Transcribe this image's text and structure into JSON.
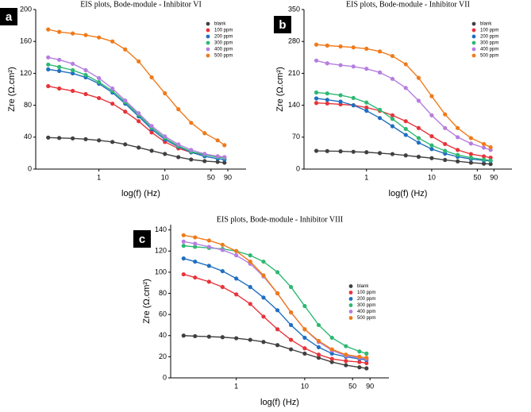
{
  "chart_data": [
    {
      "type": "line",
      "panel_label": "a",
      "title": "EIS plots, Bode-module - Inhibitor VI",
      "xlabel": "log(f) (Hz)",
      "ylabel": "Zre (Ω.cm²)",
      "xscale": "log",
      "xlim": [
        0.11,
        170
      ],
      "xticks": [
        1,
        10,
        50,
        90
      ],
      "ylim": [
        0,
        200
      ],
      "yticks": [
        0,
        40,
        80,
        120,
        160,
        200
      ],
      "legend": "upper right",
      "markers": true,
      "x": [
        0.17,
        0.25,
        0.4,
        0.63,
        1,
        1.6,
        2.5,
        4,
        6.3,
        10,
        16,
        25,
        40,
        63,
        80
      ],
      "series": [
        {
          "name": "blank",
          "color": "#404040",
          "values": [
            39.5,
            39,
            38.5,
            37.5,
            36,
            34,
            31,
            27,
            23,
            19,
            15,
            12,
            10,
            9,
            8
          ]
        },
        {
          "name": "100 ppm",
          "color": "#e8333a",
          "values": [
            104,
            101,
            98,
            94,
            89,
            82,
            72,
            60,
            46,
            34,
            26,
            21,
            18,
            16,
            15
          ]
        },
        {
          "name": "200 ppm",
          "color": "#1f6fc0",
          "values": [
            125,
            123,
            120,
            115,
            107,
            96,
            82,
            66,
            50,
            37,
            28,
            21,
            16,
            13,
            12
          ]
        },
        {
          "name": "300 ppm",
          "color": "#2fb872",
          "values": [
            131,
            128,
            124,
            118,
            109,
            98,
            84,
            68,
            52,
            39,
            29,
            22,
            18,
            15,
            14
          ]
        },
        {
          "name": "400 ppm",
          "color": "#b57ee0",
          "values": [
            140,
            137,
            132,
            124,
            114,
            101,
            86,
            70,
            54,
            41,
            31,
            24,
            19,
            16,
            15
          ]
        },
        {
          "name": "500 ppm",
          "color": "#f07a1a",
          "values": [
            175,
            172,
            170,
            168,
            165,
            160,
            150,
            135,
            115,
            95,
            75,
            58,
            45,
            36,
            30
          ]
        }
      ]
    },
    {
      "type": "line",
      "panel_label": "b",
      "title": "EIS plots, Bode-module - Inhibitor VII",
      "xlabel": "log(f) (Hz)",
      "ylabel": "Zre (Ω.cm²)",
      "xscale": "log",
      "xlim": [
        0.11,
        170
      ],
      "xticks": [
        1,
        10,
        50,
        90
      ],
      "ylim": [
        0,
        350
      ],
      "yticks": [
        0,
        70,
        140,
        210,
        280,
        350
      ],
      "legend": "upper right",
      "markers": true,
      "x": [
        0.17,
        0.25,
        0.4,
        0.63,
        1,
        1.6,
        2.5,
        4,
        6.3,
        10,
        16,
        25,
        40,
        63,
        80
      ],
      "series": [
        {
          "name": "blank",
          "color": "#404040",
          "values": [
            40,
            39.5,
            39,
            38,
            37,
            35,
            33,
            30,
            27,
            24,
            20,
            17,
            14,
            12,
            11
          ]
        },
        {
          "name": "100 ppm",
          "color": "#e8333a",
          "values": [
            145,
            144,
            142,
            140,
            135,
            128,
            118,
            105,
            90,
            72,
            55,
            42,
            33,
            28,
            25
          ]
        },
        {
          "name": "200 ppm",
          "color": "#1f6fc0",
          "values": [
            155,
            152,
            148,
            140,
            128,
            112,
            94,
            75,
            58,
            44,
            34,
            27,
            22,
            19,
            18
          ]
        },
        {
          "name": "300 ppm",
          "color": "#2fb872",
          "values": [
            168,
            166,
            162,
            156,
            146,
            130,
            110,
            88,
            68,
            52,
            40,
            31,
            25,
            21,
            19
          ]
        },
        {
          "name": "400 ppm",
          "color": "#b57ee0",
          "values": [
            238,
            232,
            228,
            225,
            220,
            212,
            198,
            178,
            150,
            118,
            90,
            70,
            56,
            47,
            42
          ]
        },
        {
          "name": "500 ppm",
          "color": "#f07a1a",
          "values": [
            273,
            271,
            269,
            267,
            264,
            258,
            248,
            230,
            200,
            160,
            120,
            90,
            68,
            55,
            48
          ]
        }
      ]
    },
    {
      "type": "line",
      "panel_label": "c",
      "title": "EIS plots, Bode-module - Inhibitor VIII",
      "xlabel": "log(f) (Hz)",
      "ylabel": "Zre (Ω.cm²)",
      "xscale": "log",
      "xlim": [
        0.11,
        170
      ],
      "xticks": [
        1,
        10,
        50,
        90
      ],
      "ylim": [
        0,
        145
      ],
      "yticks": [
        0,
        20,
        40,
        60,
        80,
        100,
        120,
        140
      ],
      "legend": "center right",
      "markers": true,
      "x": [
        0.17,
        0.25,
        0.4,
        0.63,
        1,
        1.6,
        2.5,
        4,
        6.3,
        10,
        16,
        25,
        40,
        63,
        80
      ],
      "series": [
        {
          "name": "blank",
          "color": "#404040",
          "values": [
            40,
            39.5,
            39,
            38.5,
            37.5,
            36,
            34,
            31,
            27,
            23,
            19,
            15,
            12,
            10,
            9
          ]
        },
        {
          "name": "100 ppm",
          "color": "#e8333a",
          "values": [
            98,
            95,
            91,
            86,
            79,
            70,
            58,
            46,
            36,
            28,
            22,
            18,
            16,
            15,
            14
          ]
        },
        {
          "name": "200 ppm",
          "color": "#1f6fc0",
          "values": [
            113,
            110,
            106,
            101,
            94,
            86,
            76,
            64,
            50,
            38,
            29,
            23,
            20,
            18,
            17
          ]
        },
        {
          "name": "300 ppm",
          "color": "#2fb872",
          "values": [
            125,
            124,
            123,
            122,
            120,
            116,
            110,
            100,
            86,
            68,
            50,
            38,
            30,
            25,
            23
          ]
        },
        {
          "name": "400 ppm",
          "color": "#b57ee0",
          "values": [
            129,
            127,
            124,
            121,
            116,
            108,
            96,
            80,
            62,
            46,
            34,
            26,
            21,
            19,
            18
          ]
        },
        {
          "name": "500 ppm",
          "color": "#f07a1a",
          "values": [
            135,
            133,
            130,
            126,
            120,
            110,
            97,
            80,
            62,
            46,
            35,
            27,
            22,
            20,
            19
          ]
        }
      ]
    }
  ]
}
